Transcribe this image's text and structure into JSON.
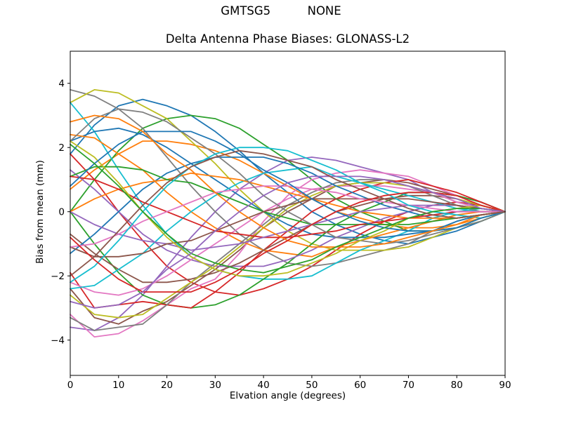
{
  "figure": {
    "suptitle": "GMTSG5          NONE"
  },
  "chart_data": {
    "type": "line",
    "title": "Delta Antenna Phase Biases: GLONASS-L2",
    "xlabel": "Elvation angle (degrees)",
    "ylabel": "Bias from mean (mm)",
    "x": [
      0,
      5,
      10,
      15,
      20,
      25,
      30,
      35,
      40,
      45,
      50,
      55,
      60,
      65,
      70,
      75,
      80,
      85,
      90
    ],
    "xlim": [
      0,
      90
    ],
    "ylim": [
      -5.1,
      5.0
    ],
    "xticks": [
      0,
      10,
      20,
      30,
      40,
      50,
      60,
      70,
      80,
      90
    ],
    "yticks": [
      -4,
      -2,
      0,
      2,
      4
    ],
    "grid": false,
    "legend": "none",
    "axis_color": "#000000",
    "background": "#ffffff",
    "palette": [
      "#1f77b4",
      "#ff7f0e",
      "#2ca02c",
      "#d62728",
      "#9467bd",
      "#8c564b",
      "#e377c2",
      "#7f7f7f",
      "#bcbd22",
      "#17becf"
    ],
    "series": [
      {
        "color": "#1f77b4",
        "values": [
          1.8,
          2.7,
          3.3,
          3.5,
          3.3,
          3.0,
          2.5,
          1.9,
          1.2,
          0.6,
          0,
          -0.4,
          -0.7,
          -0.9,
          -1.0,
          -0.8,
          -0.6,
          -0.3,
          0
        ]
      },
      {
        "color": "#ff7f0e",
        "values": [
          0.7,
          1.3,
          1.8,
          2.2,
          2.2,
          2.1,
          1.9,
          1.6,
          1.2,
          0.8,
          0.4,
          0,
          -0.2,
          -0.4,
          -0.5,
          -0.5,
          -0.4,
          -0.2,
          0
        ]
      },
      {
        "color": "#2ca02c",
        "values": [
          0,
          1.0,
          1.9,
          2.6,
          2.9,
          3.0,
          2.9,
          2.6,
          2.1,
          1.6,
          1.0,
          0.4,
          0,
          -0.3,
          -0.6,
          -0.6,
          -0.5,
          -0.3,
          0
        ]
      },
      {
        "color": "#d62728",
        "values": [
          1.8,
          1.0,
          0,
          -0.9,
          -1.7,
          -2.2,
          -2.5,
          -2.6,
          -2.4,
          -2.1,
          -1.7,
          -1.2,
          -0.7,
          -0.3,
          0,
          0.2,
          0.3,
          0.2,
          0
        ]
      },
      {
        "color": "#9467bd",
        "values": [
          -3.6,
          -3.7,
          -3.3,
          -2.6,
          -1.7,
          -0.8,
          0,
          0.7,
          1.2,
          1.6,
          1.7,
          1.6,
          1.4,
          1.2,
          1.0,
          0.6,
          0.3,
          0.1,
          0
        ]
      },
      {
        "color": "#8c564b",
        "values": [
          -2.4,
          -3.3,
          -3.5,
          -3.1,
          -2.8,
          -2.3,
          -1.8,
          -1.2,
          -0.5,
          0,
          0.4,
          0.8,
          0.9,
          1.0,
          0.9,
          0.7,
          0.5,
          0.3,
          0
        ]
      },
      {
        "color": "#e377c2",
        "values": [
          -3.2,
          -3.9,
          -3.8,
          -3.4,
          -2.9,
          -2.4,
          -2.1,
          -1.3,
          -0.3,
          0.5,
          1.0,
          1.2,
          1.3,
          1.2,
          1.1,
          0.8,
          0.5,
          0.2,
          0
        ]
      },
      {
        "color": "#7f7f7f",
        "values": [
          3.8,
          3.6,
          3.2,
          2.6,
          1.7,
          0.8,
          0,
          -0.7,
          -1.2,
          -1.6,
          -1.7,
          -1.6,
          -1.4,
          -1.2,
          -1.0,
          -0.6,
          -0.3,
          -0.1,
          0
        ]
      },
      {
        "color": "#bcbd22",
        "values": [
          3.4,
          3.8,
          3.7,
          3.3,
          2.9,
          2.2,
          1.5,
          0.7,
          0,
          -0.6,
          -1.0,
          -1.2,
          -1.2,
          -1.2,
          -1.1,
          -0.8,
          -0.5,
          -0.2,
          0
        ]
      },
      {
        "color": "#17becf",
        "values": [
          3.4,
          2.5,
          1.3,
          0.2,
          -0.7,
          -1.4,
          -1.8,
          -2.0,
          -2.1,
          -2.1,
          -2.0,
          -1.6,
          -1.2,
          -0.9,
          -0.6,
          -0.2,
          0,
          0.1,
          0
        ]
      },
      {
        "color": "#1f77b4",
        "values": [
          2.2,
          2.5,
          2.6,
          2.4,
          2.0,
          1.5,
          1.0,
          0.5,
          0,
          -0.4,
          -0.7,
          -0.8,
          -0.8,
          -0.8,
          -0.7,
          -0.6,
          -0.3,
          -0.1,
          0
        ]
      },
      {
        "color": "#ff7f0e",
        "values": [
          2.4,
          2.3,
          1.8,
          1.3,
          0.6,
          0,
          -0.5,
          -0.9,
          -1.2,
          -1.3,
          -1.4,
          -1.1,
          -0.9,
          -0.7,
          -0.5,
          -0.3,
          -0.1,
          0,
          0
        ]
      },
      {
        "color": "#2ca02c",
        "values": [
          0,
          -1.0,
          -1.9,
          -2.6,
          -2.9,
          -3.0,
          -2.9,
          -2.6,
          -2.1,
          -1.6,
          -1.0,
          -0.4,
          0,
          0.3,
          0.6,
          0.6,
          0.5,
          0.3,
          0
        ]
      },
      {
        "color": "#d62728",
        "values": [
          -1.9,
          -3.0,
          -2.9,
          -2.8,
          -2.9,
          -3.0,
          -2.5,
          -1.9,
          -1.2,
          -0.6,
          0,
          0.4,
          0.7,
          0.9,
          1.0,
          0.8,
          0.6,
          0.3,
          0
        ]
      },
      {
        "color": "#9467bd",
        "values": [
          1.3,
          0.7,
          0,
          -0.7,
          -1.2,
          -1.5,
          -1.7,
          -1.7,
          -1.7,
          -1.5,
          -1.2,
          -0.8,
          -0.5,
          -0.2,
          0,
          0.2,
          0.2,
          0.1,
          0
        ]
      },
      {
        "color": "#8c564b",
        "values": [
          -0.7,
          -1.3,
          -1.8,
          -2.2,
          -2.2,
          -2.1,
          -1.9,
          -1.6,
          -1.2,
          -0.8,
          -0.4,
          0,
          0.2,
          0.4,
          0.5,
          0.5,
          0.4,
          0.2,
          0
        ]
      },
      {
        "color": "#e377c2",
        "values": [
          -2.2,
          -2.5,
          -2.6,
          -2.4,
          -2.0,
          -1.5,
          -1.0,
          -0.5,
          0,
          0.4,
          0.7,
          0.8,
          0.8,
          0.8,
          0.7,
          0.6,
          0.3,
          0.1,
          0
        ]
      },
      {
        "color": "#7f7f7f",
        "values": [
          -3.3,
          -3.7,
          -3.6,
          -3.5,
          -2.9,
          -2.2,
          -1.6,
          -1.0,
          -0.4,
          0.2,
          0.6,
          0.9,
          1.0,
          1.0,
          0.8,
          0.5,
          0.2,
          0,
          0
        ]
      },
      {
        "color": "#bcbd22",
        "values": [
          -2.6,
          -3.2,
          -3.3,
          -3.2,
          -2.7,
          -2.2,
          -1.7,
          -1.1,
          -0.5,
          0.1,
          0.5,
          0.8,
          0.9,
          0.9,
          0.8,
          0.6,
          0.4,
          0.2,
          0
        ]
      },
      {
        "color": "#17becf",
        "values": [
          -2.4,
          -2.3,
          -1.8,
          -1.3,
          -0.6,
          0,
          0.5,
          0.9,
          1.2,
          1.3,
          1.4,
          1.1,
          0.9,
          0.7,
          0.5,
          0.3,
          0.1,
          0,
          0
        ]
      },
      {
        "color": "#1f77b4",
        "values": [
          -1.3,
          -0.7,
          0,
          0.7,
          1.2,
          1.5,
          1.7,
          1.7,
          1.7,
          1.5,
          1.2,
          0.8,
          0.5,
          0.2,
          0,
          -0.2,
          -0.2,
          -0.1,
          0
        ]
      },
      {
        "color": "#ff7f0e",
        "values": [
          0,
          0.4,
          0.7,
          0.9,
          1.0,
          1.2,
          1.1,
          1.0,
          0.8,
          0.6,
          0.4,
          0.2,
          0,
          -0.1,
          -0.2,
          -0.2,
          -0.2,
          -0.1,
          0
        ]
      },
      {
        "color": "#2ca02c",
        "values": [
          1.1,
          1.4,
          1.4,
          1.3,
          1.0,
          0.9,
          0.6,
          0.3,
          0,
          -0.2,
          -0.4,
          -0.4,
          -0.4,
          -0.4,
          -0.4,
          -0.3,
          -0.2,
          -0.1,
          0
        ]
      },
      {
        "color": "#d62728",
        "values": [
          1.1,
          1.0,
          0.7,
          0.3,
          0,
          -0.3,
          -0.6,
          -0.7,
          -0.8,
          -0.8,
          -0.7,
          -0.6,
          -0.4,
          -0.3,
          -0.2,
          -0.1,
          0,
          0,
          0
        ]
      },
      {
        "color": "#9467bd",
        "values": [
          0,
          -0.4,
          -0.7,
          -0.9,
          -1.0,
          -1.2,
          -1.1,
          -1.0,
          -0.8,
          -0.6,
          -0.4,
          -0.2,
          0,
          0.1,
          0.2,
          0.2,
          0.2,
          0.1,
          0
        ]
      },
      {
        "color": "#8c564b",
        "values": [
          -1.1,
          -1.4,
          -1.4,
          -1.3,
          -1.0,
          -0.9,
          -0.6,
          -0.3,
          0,
          0.2,
          0.4,
          0.4,
          0.4,
          0.4,
          0.4,
          0.3,
          0.2,
          0.1,
          0
        ]
      },
      {
        "color": "#e377c2",
        "values": [
          -1.1,
          -1.0,
          -0.7,
          -0.3,
          0,
          0.3,
          0.6,
          0.7,
          0.8,
          0.8,
          0.7,
          0.6,
          0.4,
          0.3,
          0.2,
          0.1,
          0,
          0,
          0
        ]
      },
      {
        "color": "#7f7f7f",
        "values": [
          2.2,
          2.9,
          3.2,
          3.1,
          2.8,
          2.3,
          1.8,
          1.2,
          0.5,
          0,
          -0.4,
          -0.8,
          -0.9,
          -1.0,
          -0.9,
          -0.7,
          -0.5,
          -0.3,
          0
        ]
      },
      {
        "color": "#bcbd22",
        "values": [
          2.2,
          1.7,
          0.9,
          0,
          -0.8,
          -1.4,
          -1.8,
          -2.0,
          -2.0,
          -1.9,
          -1.6,
          -1.3,
          -0.9,
          -0.6,
          -0.2,
          0,
          0.1,
          0.2,
          0
        ]
      },
      {
        "color": "#17becf",
        "values": [
          -2.2,
          -1.7,
          -0.9,
          0,
          0.8,
          1.4,
          1.8,
          2.0,
          2.0,
          1.9,
          1.6,
          1.3,
          0.9,
          0.6,
          0.2,
          0,
          -0.1,
          -0.2,
          0
        ]
      },
      {
        "color": "#1f77b4",
        "values": [
          0.8,
          1.5,
          2.1,
          2.5,
          2.5,
          2.5,
          2.2,
          1.8,
          1.3,
          0.9,
          0.4,
          0,
          -0.3,
          -0.5,
          -0.6,
          -0.6,
          -0.5,
          -0.2,
          0
        ]
      },
      {
        "color": "#ff7f0e",
        "values": [
          2.8,
          3.0,
          2.9,
          2.5,
          1.8,
          1.3,
          0.6,
          0,
          -0.5,
          -0.9,
          -1.1,
          -1.1,
          -1.1,
          -1.0,
          -0.8,
          -0.6,
          -0.4,
          -0.1,
          0
        ]
      },
      {
        "color": "#2ca02c",
        "values": [
          2.1,
          1.5,
          0.8,
          0,
          -0.7,
          -1.3,
          -1.6,
          -1.8,
          -1.9,
          -1.7,
          -1.5,
          -1.1,
          -0.8,
          -0.5,
          -0.2,
          0,
          0.1,
          0.1,
          0
        ]
      },
      {
        "color": "#d62728",
        "values": [
          -0.8,
          -1.5,
          -2.1,
          -2.5,
          -2.5,
          -2.5,
          -2.2,
          -1.8,
          -1.3,
          -0.9,
          -0.4,
          0,
          0.3,
          0.5,
          0.6,
          0.6,
          0.5,
          0.2,
          0
        ]
      },
      {
        "color": "#9467bd",
        "values": [
          -2.8,
          -3.0,
          -2.9,
          -2.5,
          -1.8,
          -1.3,
          -0.6,
          0,
          0.5,
          0.9,
          1.1,
          1.1,
          1.1,
          1.0,
          0.8,
          0.6,
          0.4,
          0.1,
          0
        ]
      },
      {
        "color": "#8c564b",
        "values": [
          -2.0,
          -1.4,
          -0.6,
          0.2,
          0.9,
          1.4,
          1.7,
          1.9,
          1.8,
          1.6,
          1.4,
          1.0,
          0.7,
          0.4,
          0.1,
          -0.1,
          -0.2,
          -0.1,
          0
        ]
      }
    ]
  }
}
